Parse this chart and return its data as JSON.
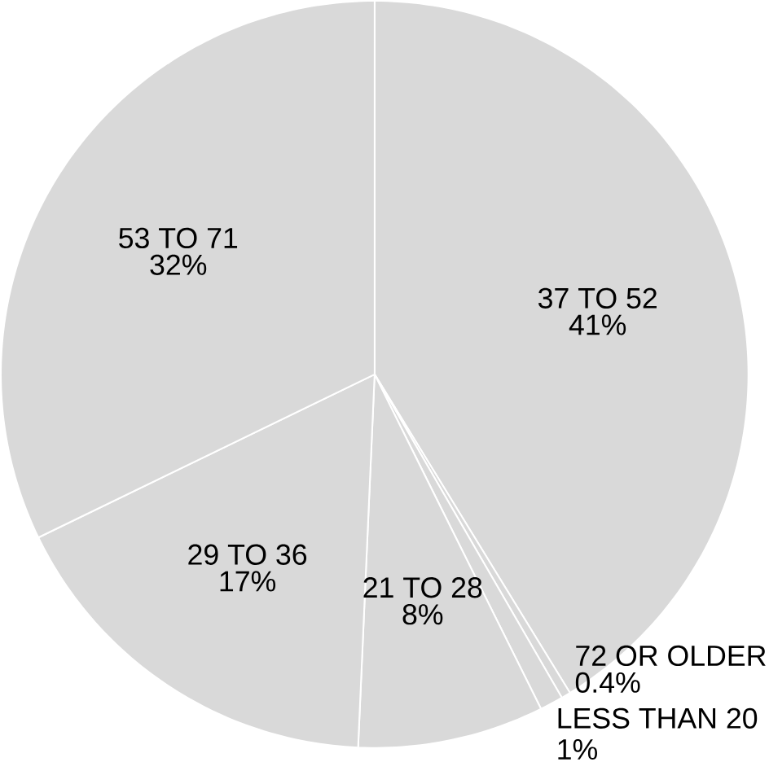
{
  "chart_data": {
    "type": "pie",
    "categories": [
      "37 TO 52",
      "72 OR OLDER",
      "LESS THAN 20",
      "21 TO 28",
      "29 TO 36",
      "53 TO 71"
    ],
    "values": [
      41,
      0.4,
      1,
      8,
      17,
      32
    ],
    "value_labels": [
      "41%",
      "0.4%",
      "1%",
      "8%",
      "17%",
      "32%"
    ],
    "colors": [
      "#d9d9d9",
      "#d9d9d9",
      "#d9d9d9",
      "#d9d9d9",
      "#d9d9d9",
      "#d9d9d9"
    ]
  }
}
